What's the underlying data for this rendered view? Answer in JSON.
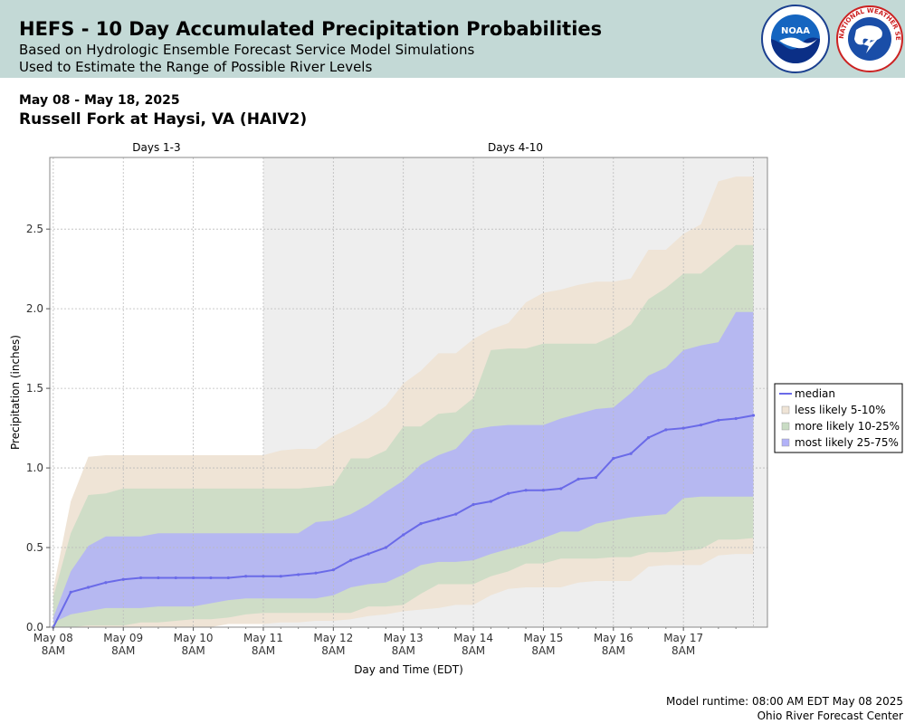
{
  "header": {
    "title": "HEFS - 10 Day Accumulated Precipitation Probabilities",
    "subtitle1": "Based on Hydrologic Ensemble Forecast Service Model Simulations",
    "subtitle2": "Used to Estimate the Range of Possible River Levels",
    "noaa_logo_text": "NOAA",
    "nws_logo_text": "NATIONAL WEATHER SERVICE"
  },
  "info": {
    "date_range": "May 08 - May 18, 2025",
    "station": "Russell Fork at Haysi, VA (HAIV2)"
  },
  "footer": {
    "runtime": "Model runtime: 08:00 AM EDT May 08 2025",
    "center": "Ohio River Forecast Center"
  },
  "colors": {
    "median": "#6a6ae8",
    "band_5_10": "#efe4d6",
    "band_10_25": "#c9dcc4",
    "band_25_75": "#b2b2f8",
    "days_4_10_background": "#eeeeee"
  },
  "chart_data": {
    "type": "area",
    "xlabel": "Day and Time (EDT)",
    "ylabel": "Precipitation (inches)",
    "ylim": [
      0,
      2.95
    ],
    "xlim": [
      -0.05,
      10.2
    ],
    "yticks": [
      0.0,
      0.5,
      1.0,
      1.5,
      2.0,
      2.5
    ],
    "ytick_labels": [
      "0.0",
      "0.5",
      "1.0",
      "1.5",
      "2.0",
      "2.5"
    ],
    "xticks": [
      {
        "x": 0,
        "line1": "May 08",
        "line2": "8AM"
      },
      {
        "x": 1,
        "line1": "May 09",
        "line2": "8AM"
      },
      {
        "x": 2,
        "line1": "May 10",
        "line2": "8AM"
      },
      {
        "x": 3,
        "line1": "May 11",
        "line2": "8AM"
      },
      {
        "x": 4,
        "line1": "May 12",
        "line2": "8AM"
      },
      {
        "x": 5,
        "line1": "May 13",
        "line2": "8AM"
      },
      {
        "x": 6,
        "line1": "May 14",
        "line2": "8AM"
      },
      {
        "x": 7,
        "line1": "May 15",
        "line2": "8AM"
      },
      {
        "x": 8,
        "line1": "May 16",
        "line2": "8AM"
      },
      {
        "x": 9,
        "line1": "May 17",
        "line2": "8AM"
      }
    ],
    "periods": [
      {
        "label": "Days 1-3",
        "start": -0.05,
        "end": 3.0
      },
      {
        "label": "Days 4-10",
        "start": 3.0,
        "end": 10.2
      }
    ],
    "x": [
      0,
      0.25,
      0.5,
      0.75,
      1,
      1.25,
      1.5,
      1.75,
      2,
      2.25,
      2.5,
      2.75,
      3,
      3.25,
      3.5,
      3.75,
      4,
      4.25,
      4.5,
      4.75,
      5,
      5.25,
      5.5,
      5.75,
      6,
      6.25,
      6.5,
      6.75,
      7,
      7.25,
      7.5,
      7.75,
      8,
      8.25,
      8.5,
      8.75,
      9,
      9.25,
      9.5,
      9.75,
      10
    ],
    "series": [
      {
        "name": "median",
        "values": [
          0.0,
          0.22,
          0.25,
          0.28,
          0.3,
          0.31,
          0.31,
          0.31,
          0.31,
          0.31,
          0.31,
          0.32,
          0.32,
          0.32,
          0.33,
          0.34,
          0.36,
          0.42,
          0.46,
          0.5,
          0.58,
          0.65,
          0.68,
          0.71,
          0.77,
          0.79,
          0.84,
          0.86,
          0.86,
          0.87,
          0.93,
          0.94,
          1.06,
          1.09,
          1.19,
          1.24,
          1.25,
          1.27,
          1.3,
          1.31,
          1.33
        ]
      },
      {
        "name": "less likely 5-10%",
        "upper": [
          0.24,
          0.79,
          1.07,
          1.08,
          1.08,
          1.08,
          1.08,
          1.08,
          1.08,
          1.08,
          1.08,
          1.08,
          1.08,
          1.11,
          1.12,
          1.12,
          1.2,
          1.25,
          1.31,
          1.39,
          1.53,
          1.61,
          1.72,
          1.72,
          1.81,
          1.87,
          1.91,
          2.04,
          2.1,
          2.12,
          2.15,
          2.17,
          2.17,
          2.19,
          2.37,
          2.37,
          2.47,
          2.53,
          2.8,
          2.83,
          2.83
        ],
        "lower": [
          0.0,
          0.0,
          0.0,
          0.0,
          0.0,
          0.0,
          0.0,
          0.0,
          0.0,
          0.0,
          0.02,
          0.02,
          0.02,
          0.03,
          0.03,
          0.04,
          0.04,
          0.05,
          0.07,
          0.08,
          0.1,
          0.11,
          0.12,
          0.14,
          0.14,
          0.2,
          0.24,
          0.25,
          0.25,
          0.25,
          0.28,
          0.29,
          0.29,
          0.29,
          0.38,
          0.39,
          0.39,
          0.39,
          0.45,
          0.46,
          0.46
        ]
      },
      {
        "name": "more likely 10-25%",
        "upper": [
          0.19,
          0.59,
          0.83,
          0.84,
          0.87,
          0.87,
          0.87,
          0.87,
          0.87,
          0.87,
          0.87,
          0.87,
          0.87,
          0.87,
          0.87,
          0.88,
          0.89,
          1.06,
          1.06,
          1.11,
          1.26,
          1.26,
          1.34,
          1.35,
          1.44,
          1.74,
          1.75,
          1.75,
          1.78,
          1.78,
          1.78,
          1.78,
          1.83,
          1.9,
          2.06,
          2.13,
          2.22,
          2.22,
          2.31,
          2.4,
          2.4
        ],
        "lower": [
          0.0,
          0.0,
          0.01,
          0.01,
          0.01,
          0.03,
          0.03,
          0.04,
          0.05,
          0.05,
          0.06,
          0.08,
          0.09,
          0.09,
          0.09,
          0.09,
          0.09,
          0.09,
          0.13,
          0.13,
          0.14,
          0.21,
          0.27,
          0.27,
          0.27,
          0.32,
          0.35,
          0.4,
          0.4,
          0.43,
          0.43,
          0.43,
          0.44,
          0.44,
          0.47,
          0.47,
          0.48,
          0.49,
          0.55,
          0.55,
          0.56
        ]
      },
      {
        "name": "most likely 25-75%",
        "upper": [
          0.06,
          0.35,
          0.51,
          0.57,
          0.57,
          0.57,
          0.59,
          0.59,
          0.59,
          0.59,
          0.59,
          0.59,
          0.59,
          0.59,
          0.59,
          0.66,
          0.67,
          0.71,
          0.77,
          0.85,
          0.92,
          1.02,
          1.08,
          1.12,
          1.24,
          1.26,
          1.27,
          1.27,
          1.27,
          1.31,
          1.34,
          1.37,
          1.38,
          1.47,
          1.58,
          1.63,
          1.74,
          1.77,
          1.79,
          1.98,
          1.98
        ],
        "lower": [
          0.03,
          0.08,
          0.1,
          0.12,
          0.12,
          0.12,
          0.13,
          0.13,
          0.13,
          0.15,
          0.17,
          0.18,
          0.18,
          0.18,
          0.18,
          0.18,
          0.2,
          0.25,
          0.27,
          0.28,
          0.33,
          0.39,
          0.41,
          0.41,
          0.42,
          0.46,
          0.49,
          0.52,
          0.56,
          0.6,
          0.6,
          0.65,
          0.67,
          0.69,
          0.7,
          0.71,
          0.81,
          0.82,
          0.82,
          0.82,
          0.82
        ]
      }
    ],
    "legend": [
      "median",
      "less likely 5-10%",
      "more likely 10-25%",
      "most likely 25-75%"
    ],
    "legend_position": "right",
    "grid": true
  }
}
